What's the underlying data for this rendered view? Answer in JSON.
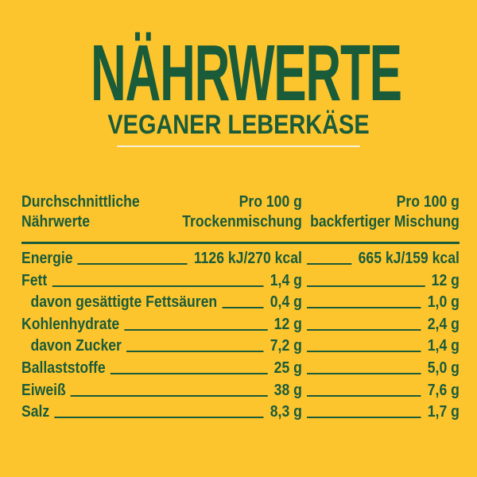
{
  "colors": {
    "background": "#FDC52D",
    "text_green": "#1A5B3A",
    "divider_cream": "#F7F2DC"
  },
  "header": {
    "title": "NÄHRWERTE",
    "subtitle": "VEGANER LEBERKÄSE"
  },
  "table": {
    "header": {
      "col_label_line1": "Durchschnittliche",
      "col_label_line2": "Nährwerte",
      "col_dry_line1": "Pro 100 g",
      "col_dry_line2": "Trockenmischung",
      "col_ready_line1": "Pro 100 g",
      "col_ready_line2": "backfertiger Mischung"
    },
    "rows": [
      {
        "label": "Energie",
        "indent": false,
        "per_100g_dry": "1126 kJ/270 kcal",
        "per_100g_ready": "665 kJ/159 kcal"
      },
      {
        "label": "Fett",
        "indent": false,
        "per_100g_dry": "1,4 g",
        "per_100g_ready": "12 g"
      },
      {
        "label": "davon gesättigte Fettsäuren",
        "indent": true,
        "per_100g_dry": "0,4 g",
        "per_100g_ready": "1,0 g"
      },
      {
        "label": "Kohlenhydrate",
        "indent": false,
        "per_100g_dry": "12 g",
        "per_100g_ready": "2,4 g"
      },
      {
        "label": "davon Zucker",
        "indent": true,
        "per_100g_dry": "7,2 g",
        "per_100g_ready": "1,4 g"
      },
      {
        "label": "Ballaststoffe",
        "indent": false,
        "per_100g_dry": "25 g",
        "per_100g_ready": "5,0 g"
      },
      {
        "label": "Eiweiß",
        "indent": false,
        "per_100g_dry": "38 g",
        "per_100g_ready": "7,6 g"
      },
      {
        "label": "Salz",
        "indent": false,
        "per_100g_dry": "8,3 g",
        "per_100g_ready": "1,7 g"
      }
    ]
  }
}
